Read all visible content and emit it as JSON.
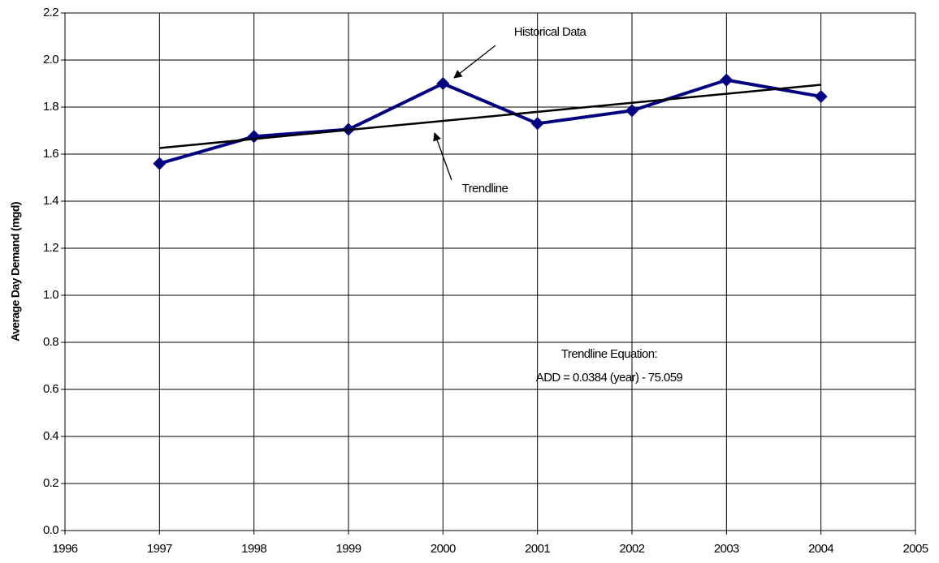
{
  "chart_data": {
    "type": "line",
    "y_label": "Average Day Demand (mgd)",
    "xlim": [
      1996,
      2005
    ],
    "xticks": [
      1996,
      1997,
      1998,
      1999,
      2000,
      2001,
      2002,
      2003,
      2004,
      2005
    ],
    "ylim": [
      0,
      2.2
    ],
    "yticks": [
      {
        "value": 0,
        "label": "0.0"
      },
      {
        "value": 0.2,
        "label": "0.2"
      },
      {
        "value": 0.4,
        "label": "0.4"
      },
      {
        "value": 0.6,
        "label": "0.6"
      },
      {
        "value": 0.8,
        "label": "0.8"
      },
      {
        "value": 1.0,
        "label": "1.0"
      },
      {
        "value": 1.2,
        "label": "1.2"
      },
      {
        "value": 1.4,
        "label": "1.4"
      },
      {
        "value": 1.6,
        "label": "1.6"
      },
      {
        "value": 1.8,
        "label": "1.8"
      },
      {
        "value": 2.0,
        "label": "2.0"
      },
      {
        "value": 2.2,
        "label": "2.2"
      }
    ],
    "grid": true,
    "series": [
      {
        "name": "Historical Data",
        "color": "#000080",
        "markers": true,
        "x": [
          1997,
          1998,
          1999,
          2000,
          2001,
          2002,
          2003,
          2004
        ],
        "values": [
          1.56,
          1.675,
          1.705,
          1.9,
          1.73,
          1.785,
          1.915,
          1.845
        ]
      },
      {
        "name": "Trendline",
        "color": "#000000",
        "markers": false,
        "x": [
          1997,
          2004
        ],
        "values": [
          1.626,
          1.895
        ]
      }
    ],
    "annotations": [
      "Trendline Equation:",
      "ADD = 0.0384 (year) - 75.059"
    ]
  }
}
